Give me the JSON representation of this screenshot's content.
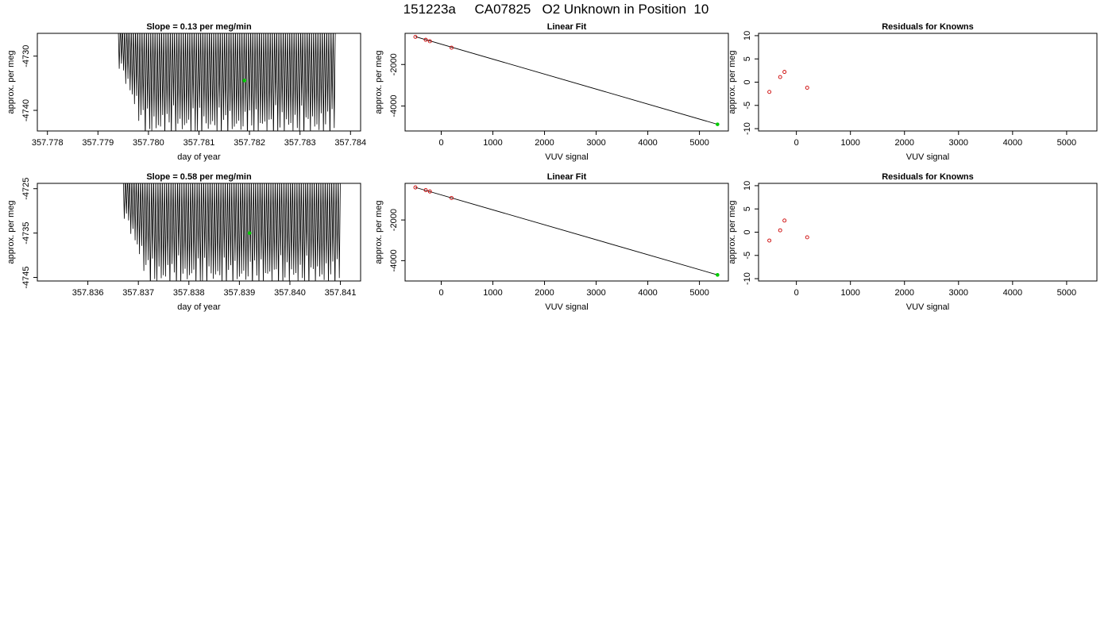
{
  "page_title": "151223a     CA07825   O2 Unknown in Position  10",
  "chart_data": [
    {
      "type": "line",
      "title": "Slope =  0.13  per meg/min",
      "xlabel": "day of year",
      "ylabel": "approx. per meg",
      "xlim": [
        357.7778,
        357.7842
      ],
      "ylim": [
        -4743.8,
        -4725.8
      ],
      "xticks": [
        357.778,
        357.779,
        357.78,
        357.781,
        357.782,
        357.783,
        357.784
      ],
      "xtick_labels": [
        "357.778",
        "357.779",
        "357.780",
        "357.781",
        "357.782",
        "357.783",
        "357.784"
      ],
      "yticks": [
        -4740,
        -4730
      ],
      "ytick_labels": [
        "-4740",
        "-4730"
      ],
      "series": [
        {
          "style": "oscillating-trace",
          "x_start": 357.7794,
          "x_end": 357.7837,
          "y_min": -4743.8,
          "y_max": -4725.8,
          "cycles": 100,
          "color": "#000000"
        }
      ],
      "highlight_points": [
        {
          "x": 357.7819,
          "y": -4734.5,
          "color": "#00cc00"
        }
      ]
    },
    {
      "type": "scatter",
      "title": "Linear Fit",
      "xlabel": "VUV signal",
      "ylabel": "approx. per meg",
      "xlim": [
        -700,
        5560
      ],
      "ylim": [
        -5200,
        -500
      ],
      "xticks": [
        0,
        1000,
        2000,
        3000,
        4000,
        5000
      ],
      "xtick_labels": [
        "0",
        "1000",
        "2000",
        "3000",
        "4000",
        "5000"
      ],
      "yticks": [
        -4000,
        -2000
      ],
      "ytick_labels": [
        "-4000",
        "-2000"
      ],
      "points": [
        {
          "x": -500,
          "y": -670
        },
        {
          "x": -300,
          "y": -810
        },
        {
          "x": -220,
          "y": -880
        },
        {
          "x": 200,
          "y": -1190
        }
      ],
      "point_color": "#cc0000",
      "fit_line": {
        "x1": -500,
        "y1": -660,
        "x2": 5350,
        "y2": -4880
      },
      "unknown_point": {
        "x": 5350,
        "y": -4880,
        "color": "#00cc00"
      }
    },
    {
      "type": "scatter",
      "title": "Residuals for Knowns",
      "xlabel": "VUV signal",
      "ylabel": "approx. per meg",
      "xlim": [
        -700,
        5560
      ],
      "ylim": [
        -10.5,
        10.5
      ],
      "xticks": [
        0,
        1000,
        2000,
        3000,
        4000,
        5000
      ],
      "xtick_labels": [
        "0",
        "1000",
        "2000",
        "3000",
        "4000",
        "5000"
      ],
      "yticks": [
        -10,
        -5,
        0,
        5,
        10
      ],
      "ytick_labels": [
        "-10",
        "-5",
        "0",
        "5",
        "10"
      ],
      "points": [
        {
          "x": -500,
          "y": -2.1
        },
        {
          "x": -300,
          "y": 1.1
        },
        {
          "x": -220,
          "y": 2.2
        },
        {
          "x": 200,
          "y": -1.2
        }
      ],
      "point_color": "#cc0000"
    },
    {
      "type": "line",
      "title": "Slope =  0.58  per meg/min",
      "xlabel": "day of year",
      "ylabel": "approx. per meg",
      "xlim": [
        357.835,
        357.8414
      ],
      "ylim": [
        -4745.8,
        -4723.8
      ],
      "xticks": [
        357.836,
        357.837,
        357.838,
        357.839,
        357.84,
        357.841
      ],
      "xtick_labels": [
        "357.836",
        "357.837",
        "357.838",
        "357.839",
        "357.840",
        "357.841"
      ],
      "yticks": [
        -4745,
        -4735,
        -4725
      ],
      "ytick_labels": [
        "-4745",
        "-4735",
        "-4725"
      ],
      "series": [
        {
          "style": "oscillating-trace",
          "x_start": 357.8367,
          "x_end": 357.841,
          "y_min": -4745.8,
          "y_max": -4723.8,
          "cycles": 100,
          "color": "#000000"
        }
      ],
      "highlight_points": [
        {
          "x": 357.8392,
          "y": -4735,
          "color": "#00cc00"
        }
      ]
    },
    {
      "type": "scatter",
      "title": "Linear Fit",
      "xlabel": "VUV signal",
      "ylabel": "approx. per meg",
      "xlim": [
        -700,
        5560
      ],
      "ylim": [
        -5000,
        -200
      ],
      "xticks": [
        0,
        1000,
        2000,
        3000,
        4000,
        5000
      ],
      "xtick_labels": [
        "0",
        "1000",
        "2000",
        "3000",
        "4000",
        "5000"
      ],
      "yticks": [
        -4000,
        -2000
      ],
      "ytick_labels": [
        "-4000",
        "-2000"
      ],
      "points": [
        {
          "x": -500,
          "y": -400
        },
        {
          "x": -300,
          "y": -530
        },
        {
          "x": -220,
          "y": -600
        },
        {
          "x": 200,
          "y": -920
        }
      ],
      "point_color": "#cc0000",
      "fit_line": {
        "x1": -500,
        "y1": -400,
        "x2": 5350,
        "y2": -4700
      },
      "unknown_point": {
        "x": 5350,
        "y": -4700,
        "color": "#00cc00"
      }
    },
    {
      "type": "scatter",
      "title": "Residuals for Knowns",
      "xlabel": "VUV signal",
      "ylabel": "approx. per meg",
      "xlim": [
        -700,
        5560
      ],
      "ylim": [
        -10.5,
        10.5
      ],
      "xticks": [
        0,
        1000,
        2000,
        3000,
        4000,
        5000
      ],
      "xtick_labels": [
        "0",
        "1000",
        "2000",
        "3000",
        "4000",
        "5000"
      ],
      "yticks": [
        -10,
        -5,
        0,
        5,
        10
      ],
      "ytick_labels": [
        "-10",
        "-5",
        "0",
        "5",
        "10"
      ],
      "points": [
        {
          "x": -500,
          "y": -1.8
        },
        {
          "x": -300,
          "y": 0.4
        },
        {
          "x": -220,
          "y": 2.5
        },
        {
          "x": 200,
          "y": -1.1
        }
      ],
      "point_color": "#cc0000"
    }
  ]
}
